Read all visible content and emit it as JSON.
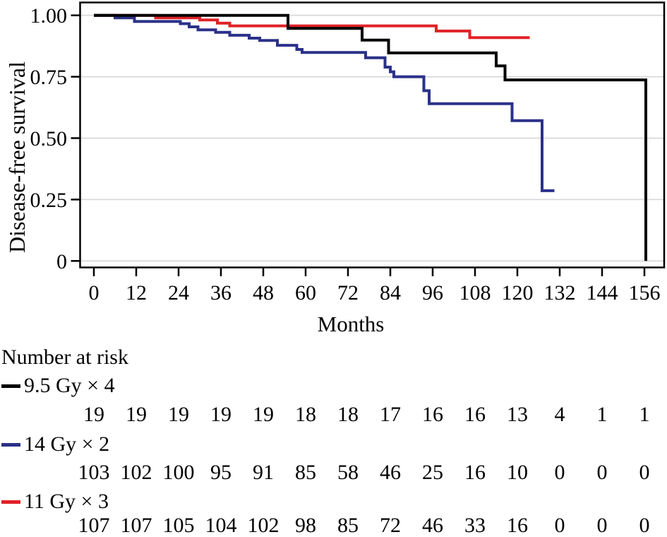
{
  "chart_data": {
    "type": "line",
    "subtype": "kaplan-meier-step-survival",
    "title": "",
    "xlabel": "Months",
    "ylabel": "Disease-free survival",
    "x_ticks": [
      0,
      12,
      24,
      36,
      48,
      60,
      72,
      84,
      96,
      108,
      120,
      132,
      144,
      156
    ],
    "y_ticks": [
      0,
      0.25,
      0.5,
      0.75,
      1.0
    ],
    "y_tick_labels": [
      "0",
      "0.25",
      "0.50",
      "0.75",
      "1.00"
    ],
    "xlim": [
      0,
      161.6
    ],
    "ylim": [
      0,
      1.0
    ],
    "grid": "horizontal",
    "legend_position": "below-with-risk-table",
    "colors": {
      "black_group": "#000000",
      "blue_group": "#2b3189",
      "red_group": "#e02227",
      "gridline": "#d9d9d9"
    },
    "series": [
      {
        "name": "11 Gy × 3",
        "color": "#e02227",
        "end_t": 123.5,
        "steps": [
          [
            0,
            1.0
          ],
          [
            17.5,
            0.99
          ],
          [
            30,
            0.981
          ],
          [
            35,
            0.968
          ],
          [
            38.5,
            0.957
          ],
          [
            97,
            0.936
          ],
          [
            106.5,
            0.909
          ]
        ]
      },
      {
        "name": "14 Gy × 2",
        "color": "#2b3189",
        "end_t": 130.5,
        "steps": [
          [
            0,
            1.0
          ],
          [
            6,
            0.99
          ],
          [
            11.5,
            0.975
          ],
          [
            24.5,
            0.966
          ],
          [
            27,
            0.953
          ],
          [
            29.5,
            0.941
          ],
          [
            34.5,
            0.931
          ],
          [
            38.5,
            0.919
          ],
          [
            44,
            0.907
          ],
          [
            47,
            0.898
          ],
          [
            52,
            0.878
          ],
          [
            57.5,
            0.861
          ],
          [
            59,
            0.849
          ],
          [
            77,
            0.827
          ],
          [
            82.5,
            0.789
          ],
          [
            84,
            0.77
          ],
          [
            85,
            0.75
          ],
          [
            93.5,
            0.693
          ],
          [
            95,
            0.64
          ],
          [
            118.5,
            0.571
          ],
          [
            127,
            0.286
          ]
        ]
      },
      {
        "name": "9.5 Gy × 4",
        "color": "#000000",
        "end_t": 156.4,
        "steps": [
          [
            0,
            1.0
          ],
          [
            55,
            0.947
          ],
          [
            76,
            0.899
          ],
          [
            83.5,
            0.847
          ],
          [
            114,
            0.794
          ],
          [
            116.5,
            0.737
          ],
          [
            156.4,
            0
          ]
        ]
      }
    ],
    "number_at_risk": {
      "heading": "Number at risk",
      "time_points": [
        0,
        12,
        24,
        36,
        48,
        60,
        72,
        84,
        96,
        108,
        120,
        132,
        144,
        156
      ],
      "rows": [
        {
          "label": "9.5 Gy × 4",
          "color": "#000000",
          "counts": [
            19,
            19,
            19,
            19,
            19,
            18,
            18,
            17,
            16,
            16,
            13,
            4,
            1,
            1
          ]
        },
        {
          "label": "14 Gy × 2",
          "color": "#2b3189",
          "counts": [
            103,
            102,
            100,
            95,
            91,
            85,
            58,
            46,
            25,
            16,
            10,
            0,
            0,
            0
          ]
        },
        {
          "label": "11 Gy × 3",
          "color": "#e02227",
          "counts": [
            107,
            107,
            105,
            104,
            102,
            98,
            85,
            72,
            46,
            33,
            16,
            0,
            0,
            0
          ]
        }
      ]
    }
  }
}
